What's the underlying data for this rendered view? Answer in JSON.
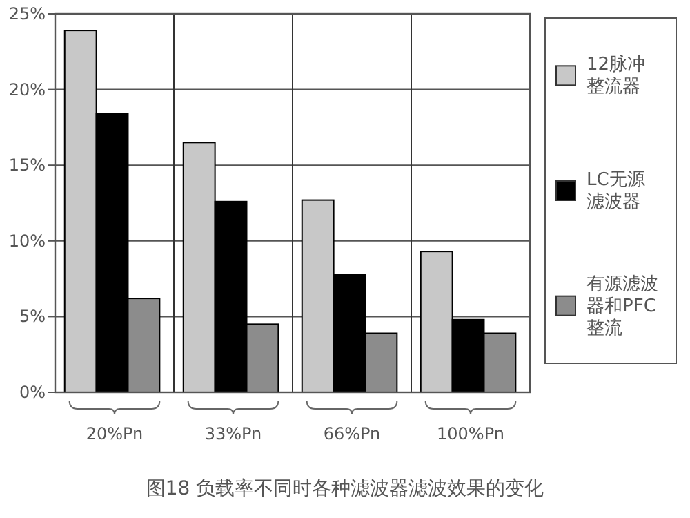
{
  "chart_data": {
    "type": "bar",
    "title": "图18 负载率不同时各种滤波器滤波效果的变化",
    "categories": [
      "20%Pn",
      "33%Pn",
      "66%Pn",
      "100%Pn"
    ],
    "series": [
      {
        "name": "12脉冲整流器",
        "color": "#c8c8c8",
        "values": [
          23.9,
          16.5,
          12.7,
          9.3
        ]
      },
      {
        "name": "LC无源滤波器",
        "color": "#000000",
        "values": [
          18.4,
          12.6,
          7.8,
          4.8
        ]
      },
      {
        "name": "有源滤波器和PFC整流",
        "color": "#8c8c8c",
        "values": [
          6.2,
          4.5,
          3.9,
          3.9
        ]
      }
    ],
    "ylim": [
      0,
      25
    ],
    "yticks": [
      {
        "value": 0,
        "label": "0%"
      },
      {
        "value": 5,
        "label": "5%"
      },
      {
        "value": 10,
        "label": "10%"
      },
      {
        "value": 15,
        "label": "15%"
      },
      {
        "value": 20,
        "label": "20%"
      },
      {
        "value": 25,
        "label": "25%"
      }
    ],
    "grid": "y",
    "legend": "right"
  }
}
